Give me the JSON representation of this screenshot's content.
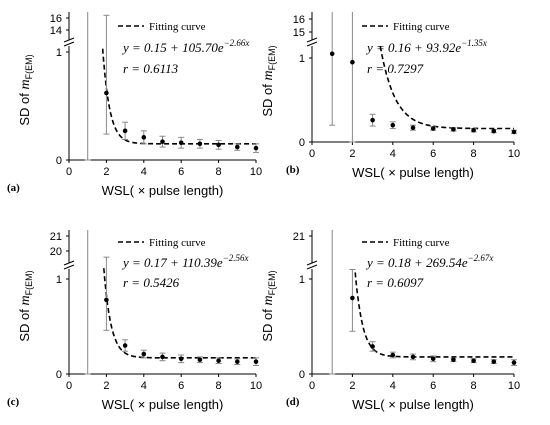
{
  "chart_data": [
    {
      "type": "scatter",
      "panel_label": "(a)",
      "xlabel": "WSL( × pulse length)",
      "ylabel_prefix": "SD of ",
      "ylabel_var": "m",
      "ylabel_sub": "F(EM)",
      "xlim": [
        0,
        10
      ],
      "x_ticks": [
        "0",
        "2",
        "4",
        "6",
        "8",
        "10"
      ],
      "y_ticks_lower": [
        "0",
        "1"
      ],
      "y_ticks_upper": [
        "14",
        "16"
      ],
      "y_break": true,
      "legend": "Fitting curve",
      "equation": "y = 0.15 + 105.70e^{-2.66x}",
      "eq_main": "y = 0.15 + 105.70e",
      "eq_exp": "−2.66x",
      "r_text": "r = 0.6113",
      "fit": {
        "a": 0.15,
        "b": 105.7,
        "c": -2.66
      },
      "points": [
        {
          "x": 1,
          "y": 0.0,
          "err_low": 0,
          "err_high": 16.5
        },
        {
          "x": 2,
          "y": 0.62,
          "err_low": 0.38,
          "err_high": 0.72
        },
        {
          "x": 3,
          "y": 0.27,
          "err_low": 0.08,
          "err_high": 0.08
        },
        {
          "x": 4,
          "y": 0.21,
          "err_low": 0.06,
          "err_high": 0.06
        },
        {
          "x": 5,
          "y": 0.17,
          "err_low": 0.05,
          "err_high": 0.05
        },
        {
          "x": 6,
          "y": 0.16,
          "err_low": 0.05,
          "err_high": 0.05
        },
        {
          "x": 7,
          "y": 0.15,
          "err_low": 0.04,
          "err_high": 0.04
        },
        {
          "x": 8,
          "y": 0.14,
          "err_low": 0.04,
          "err_high": 0.04
        },
        {
          "x": 9,
          "y": 0.12,
          "err_low": 0.03,
          "err_high": 0.03
        },
        {
          "x": 10,
          "y": 0.11,
          "err_low": 0.04,
          "err_high": 0.04
        }
      ]
    },
    {
      "type": "scatter",
      "panel_label": "(b)",
      "xlabel": "WSL( × pulse length)",
      "ylabel_prefix": "SD of ",
      "ylabel_var": "m",
      "ylabel_sub": "F(EM)",
      "xlim": [
        0,
        10
      ],
      "x_ticks": [
        "0",
        "2",
        "4",
        "6",
        "8",
        "10"
      ],
      "y_ticks_lower": [
        "0",
        "1"
      ],
      "y_ticks_upper": [
        "15",
        "16"
      ],
      "y_break": true,
      "legend": "Fitting curve",
      "equation": "y = 0.16 + 93.92e^{-1.35x}",
      "eq_main": "y = 0.16 + 93.92e",
      "eq_exp": "−1.35x",
      "r_text": "r = 0.7297",
      "fit": {
        "a": 0.16,
        "b": 93.92,
        "c": -1.35
      },
      "points": [
        {
          "x": 1,
          "y": 1.05,
          "err_low": 0.85,
          "err_high": 16.5
        },
        {
          "x": 2,
          "y": 0.95,
          "err_low": 1.2,
          "err_high": 1.0
        },
        {
          "x": 3,
          "y": 0.26,
          "err_low": 0.07,
          "err_high": 0.07
        },
        {
          "x": 4,
          "y": 0.2,
          "err_low": 0.04,
          "err_high": 0.04
        },
        {
          "x": 5,
          "y": 0.17,
          "err_low": 0.03,
          "err_high": 0.03
        },
        {
          "x": 6,
          "y": 0.16,
          "err_low": 0.02,
          "err_high": 0.02
        },
        {
          "x": 7,
          "y": 0.15,
          "err_low": 0.02,
          "err_high": 0.02
        },
        {
          "x": 8,
          "y": 0.14,
          "err_low": 0.02,
          "err_high": 0.02
        },
        {
          "x": 9,
          "y": 0.13,
          "err_low": 0.02,
          "err_high": 0.02
        },
        {
          "x": 10,
          "y": 0.12,
          "err_low": 0.02,
          "err_high": 0.02
        }
      ]
    },
    {
      "type": "scatter",
      "panel_label": "(c)",
      "xlabel": "WSL( × pulse length)",
      "ylabel_prefix": "SD of ",
      "ylabel_var": "m",
      "ylabel_sub": "F(EM)",
      "xlim": [
        0,
        10
      ],
      "x_ticks": [
        "0",
        "2",
        "4",
        "6",
        "8",
        "10"
      ],
      "y_ticks_lower": [
        "0",
        "1"
      ],
      "y_ticks_upper": [
        "20",
        "21"
      ],
      "y_break": true,
      "legend": "Fitting curve",
      "equation": "y = 0.17 + 110.39e^{-2.56x}",
      "eq_main": "y = 0.17 + 110.39e",
      "eq_exp": "−2.56x",
      "r_text": "r = 0.5426",
      "fit": {
        "a": 0.17,
        "b": 110.39,
        "c": -2.56
      },
      "points": [
        {
          "x": 1,
          "y": 0.0,
          "err_low": 0,
          "err_high": 21.5
        },
        {
          "x": 2,
          "y": 0.78,
          "err_low": 0.32,
          "err_high": 0.45
        },
        {
          "x": 3,
          "y": 0.3,
          "err_low": 0.06,
          "err_high": 0.06
        },
        {
          "x": 4,
          "y": 0.21,
          "err_low": 0.04,
          "err_high": 0.04
        },
        {
          "x": 5,
          "y": 0.18,
          "err_low": 0.04,
          "err_high": 0.04
        },
        {
          "x": 6,
          "y": 0.16,
          "err_low": 0.04,
          "err_high": 0.04
        },
        {
          "x": 7,
          "y": 0.15,
          "err_low": 0.03,
          "err_high": 0.03
        },
        {
          "x": 8,
          "y": 0.14,
          "err_low": 0.03,
          "err_high": 0.03
        },
        {
          "x": 9,
          "y": 0.13,
          "err_low": 0.03,
          "err_high": 0.03
        },
        {
          "x": 10,
          "y": 0.13,
          "err_low": 0.04,
          "err_high": 0.04
        }
      ]
    },
    {
      "type": "scatter",
      "panel_label": "(d)",
      "xlabel": "WSL( × pulse length)",
      "ylabel_prefix": "SD of ",
      "ylabel_var": "m",
      "ylabel_sub": "F(EM)",
      "xlim": [
        0,
        10
      ],
      "x_ticks": [
        "0",
        "2",
        "4",
        "6",
        "8",
        "10"
      ],
      "y_ticks_lower": [
        "0",
        "1"
      ],
      "y_ticks_upper": [
        "21"
      ],
      "y_break": true,
      "legend": "Fitting curve",
      "equation": "y = 0.18 + 269.54e^{-2.67x}",
      "eq_main": "y = 0.18 + 269.54e",
      "eq_exp": "−2.67x",
      "r_text": "r = 0.6097",
      "fit": {
        "a": 0.18,
        "b": 269.54,
        "c": -2.67
      },
      "points": [
        {
          "x": 1,
          "y": 0.0,
          "err_low": 0,
          "err_high": 21.5
        },
        {
          "x": 2,
          "y": 0.8,
          "err_low": 0.35,
          "err_high": 0.3
        },
        {
          "x": 3,
          "y": 0.29,
          "err_low": 0.05,
          "err_high": 0.05
        },
        {
          "x": 4,
          "y": 0.2,
          "err_low": 0.03,
          "err_high": 0.03
        },
        {
          "x": 5,
          "y": 0.18,
          "err_low": 0.03,
          "err_high": 0.03
        },
        {
          "x": 6,
          "y": 0.16,
          "err_low": 0.03,
          "err_high": 0.03
        },
        {
          "x": 7,
          "y": 0.15,
          "err_low": 0.02,
          "err_high": 0.02
        },
        {
          "x": 8,
          "y": 0.14,
          "err_low": 0.02,
          "err_high": 0.02
        },
        {
          "x": 9,
          "y": 0.13,
          "err_low": 0.02,
          "err_high": 0.02
        },
        {
          "x": 10,
          "y": 0.12,
          "err_low": 0.03,
          "err_high": 0.03
        }
      ]
    }
  ]
}
